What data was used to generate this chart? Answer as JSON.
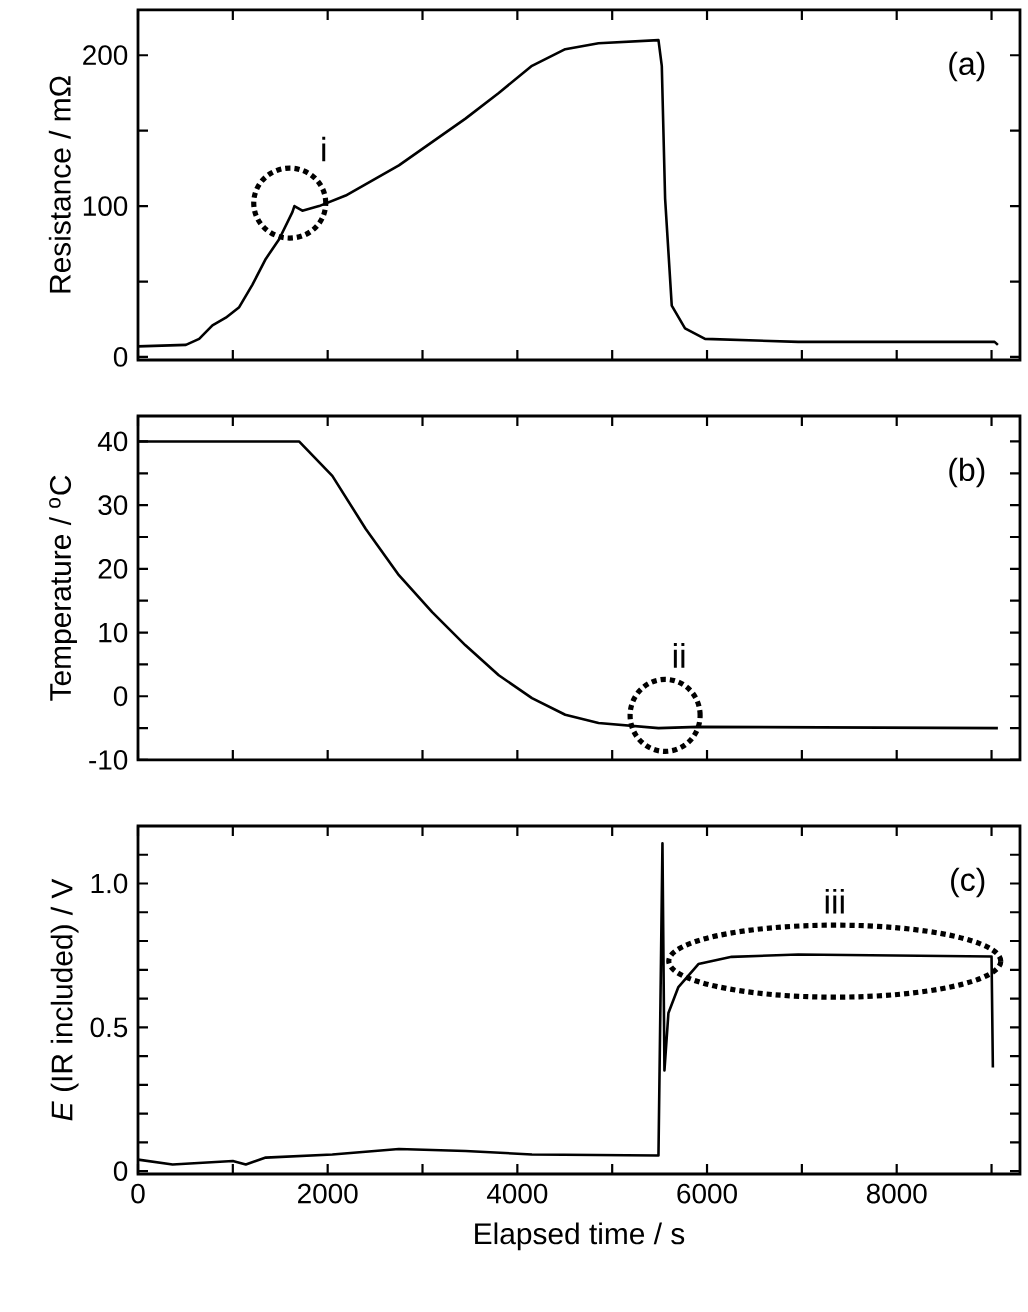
{
  "chart_data": [
    {
      "type": "line",
      "ylabel": "Resistance / mΩ",
      "xlim": [
        0,
        9300
      ],
      "ylim": [
        -2,
        230
      ],
      "tick_labels": "y",
      "marker": "none",
      "line_style": "solid",
      "xticks": [
        0,
        {
          "value": 1000,
          "label": null
        },
        2000,
        {
          "value": 3000,
          "label": null
        },
        4000,
        {
          "value": 5000,
          "label": null
        },
        6000,
        {
          "value": 7000,
          "label": null
        },
        8000,
        {
          "value": 9000,
          "label": null
        }
      ],
      "yticks": [
        0,
        {
          "value": 50,
          "label": null
        },
        100,
        {
          "value": 150,
          "label": null
        },
        200
      ],
      "annotations": [
        "(a)",
        {
          "text": "i",
          "x": 1600,
          "y": 102
        }
      ],
      "series": [
        {
          "color": "#000000",
          "x": [
            0,
            505,
            645,
            785,
            926,
            1067,
            1207,
            1347,
            1488,
            1628,
            1649,
            1733,
            1909,
            2190,
            2751,
            3453,
            3804,
            4154,
            4505,
            4856,
            5488,
            5523,
            5558,
            5628,
            5768,
            5979,
            6961,
            9032,
            9067
          ],
          "values": [
            7,
            8,
            12,
            21,
            26,
            33,
            48,
            65,
            78,
            96,
            100,
            97,
            100,
            107,
            127,
            158,
            175,
            193,
            204,
            208,
            210,
            193,
            105,
            34,
            19,
            12,
            10,
            10,
            8
          ]
        }
      ]
    },
    {
      "type": "line",
      "ylabel": "Temperature / $^{o}$C",
      "xlim": [
        0,
        9300
      ],
      "ylim": [
        -10,
        44
      ],
      "tick_labels": "y",
      "marker": "none",
      "line_style": "solid",
      "xticks": [
        0,
        {
          "value": 1000,
          "label": null
        },
        2000,
        {
          "value": 3000,
          "label": null
        },
        4000,
        {
          "value": 5000,
          "label": null
        },
        6000,
        {
          "value": 7000,
          "label": null
        },
        8000,
        {
          "value": 9000,
          "label": null
        }
      ],
      "yticks": [
        -10,
        {
          "value": -5,
          "label": null
        },
        0,
        {
          "value": 5,
          "label": null
        },
        10,
        {
          "value": 15,
          "label": null
        },
        20,
        {
          "value": 25,
          "label": null
        },
        30,
        {
          "value": 35,
          "label": null
        },
        40
      ],
      "annotations": [
        "(b)",
        {
          "text": "ii",
          "x": 5558,
          "y": -3
        }
      ],
      "series": [
        {
          "color": "#000000",
          "x": [
            0,
            1698,
            2049,
            2400,
            2751,
            3102,
            3453,
            3804,
            4154,
            4505,
            4856,
            5488,
            5909,
            9067
          ],
          "values": [
            40,
            40,
            34.6,
            26.3,
            19,
            13.2,
            8,
            3.3,
            -0.3,
            -2.9,
            -4.2,
            -5,
            -4.8,
            -5
          ]
        }
      ]
    },
    {
      "type": "line",
      "ylabel": "*E* (IR included) / V",
      "xlabel": "Elapsed time / s",
      "xlim": [
        0,
        9300
      ],
      "ylim": [
        -0.01,
        1.2
      ],
      "marker": "none",
      "line_style": "solid",
      "xticks": [
        0,
        {
          "value": 1000,
          "label": null
        },
        2000,
        {
          "value": 3000,
          "label": null
        },
        4000,
        {
          "value": 5000,
          "label": null
        },
        6000,
        {
          "value": 7000,
          "label": null
        },
        8000,
        {
          "value": 9000,
          "label": null
        }
      ],
      "yticks": [
        0,
        {
          "value": 0.1,
          "label": null
        },
        {
          "value": 0.2,
          "label": null
        },
        {
          "value": 0.3,
          "label": null
        },
        {
          "value": 0.4,
          "label": null
        },
        0.5,
        {
          "value": 0.6,
          "label": null
        },
        {
          "value": 0.7,
          "label": null
        },
        {
          "value": 0.8,
          "label": null
        },
        {
          "value": 0.9,
          "label": null
        },
        {
          "value": 1.0,
          "label": "1.0"
        },
        {
          "value": 1.1,
          "label": null
        }
      ],
      "annotations": [
        "(c)",
        {
          "text": "iii",
          "x": 7347,
          "y": 0.73
        }
      ],
      "series": [
        {
          "color": "#000000",
          "x": [
            0,
            365,
            1000,
            1137,
            1347,
            2049,
            2751,
            3453,
            4154,
            5488,
            5509,
            5530,
            5551,
            5593,
            5698,
            5909,
            6260,
            6961,
            9000,
            9014
          ],
          "values": [
            0.04,
            0.023,
            0.035,
            0.023,
            0.047,
            0.058,
            0.077,
            0.07,
            0.058,
            0.054,
            0.59,
            1.14,
            0.35,
            0.55,
            0.64,
            0.72,
            0.745,
            0.753,
            0.746,
            0.36
          ]
        }
      ]
    }
  ]
}
